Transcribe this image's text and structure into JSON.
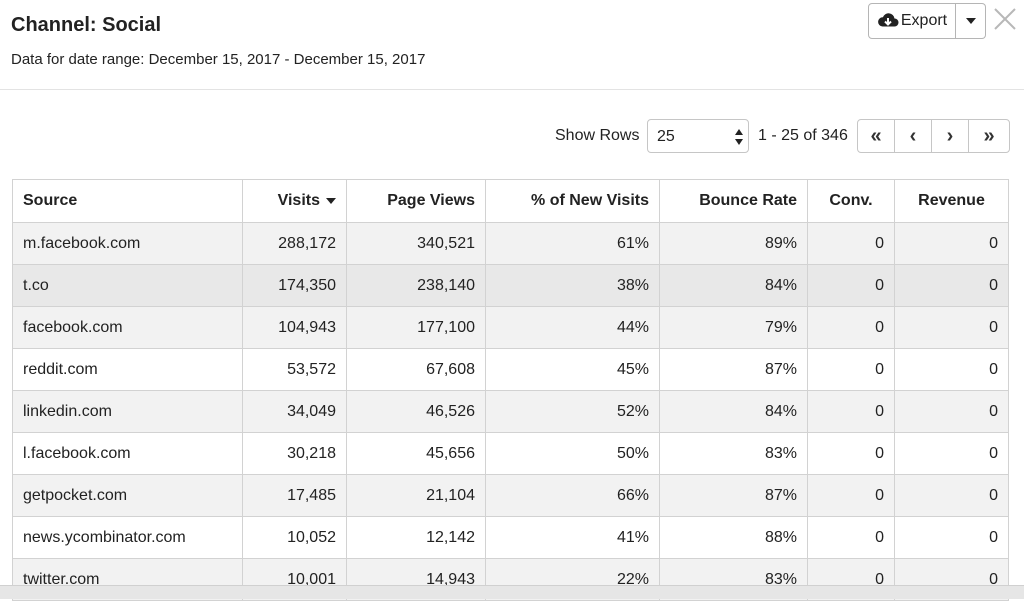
{
  "header": {
    "title": "Channel: Social",
    "subtitle": "Data for date range: December 15, 2017 - December 15, 2017",
    "export_label": "Export"
  },
  "controls": {
    "show_rows_label": "Show Rows",
    "rows_value": "25",
    "range_text": "1 - 25 of 346",
    "first_label": "«",
    "prev_label": "‹",
    "next_label": "›",
    "last_label": "»"
  },
  "table": {
    "columns": [
      "Source",
      "Visits",
      "Page Views",
      "% of New Visits",
      "Bounce Rate",
      "Conv.",
      "Revenue"
    ],
    "sorted_column": "Visits",
    "rows": [
      [
        "m.facebook.com",
        "288,172",
        "340,521",
        "61%",
        "89%",
        "0",
        "0"
      ],
      [
        "t.co",
        "174,350",
        "238,140",
        "38%",
        "84%",
        "0",
        "0"
      ],
      [
        "facebook.com",
        "104,943",
        "177,100",
        "44%",
        "79%",
        "0",
        "0"
      ],
      [
        "reddit.com",
        "53,572",
        "67,608",
        "45%",
        "87%",
        "0",
        "0"
      ],
      [
        "linkedin.com",
        "34,049",
        "46,526",
        "52%",
        "84%",
        "0",
        "0"
      ],
      [
        "l.facebook.com",
        "30,218",
        "45,656",
        "50%",
        "83%",
        "0",
        "0"
      ],
      [
        "getpocket.com",
        "17,485",
        "21,104",
        "66%",
        "87%",
        "0",
        "0"
      ],
      [
        "news.ycombinator.com",
        "10,052",
        "12,142",
        "41%",
        "88%",
        "0",
        "0"
      ],
      [
        "twitter.com",
        "10,001",
        "14,943",
        "22%",
        "83%",
        "0",
        "0"
      ]
    ]
  },
  "icons": {
    "export": "cloud-download-icon",
    "close": "close-icon"
  }
}
